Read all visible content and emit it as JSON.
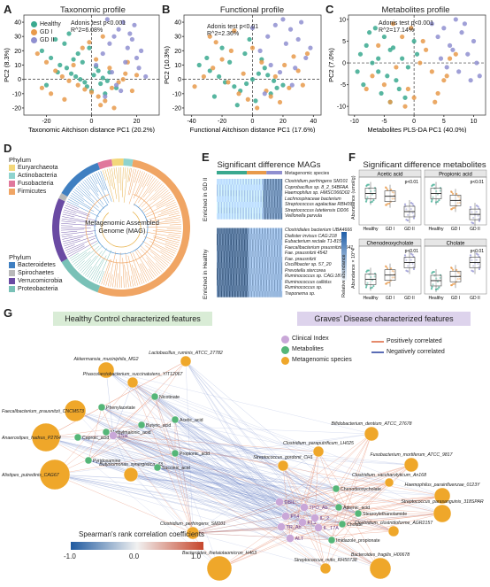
{
  "panel_letters": [
    "A",
    "B",
    "C",
    "D",
    "E",
    "F",
    "G"
  ],
  "colors": {
    "healthy": "#3aa98f",
    "gd1": "#e89a4b",
    "gd2": "#8f8fd0"
  },
  "panel_a": {
    "title": "Taxonomic profile",
    "adonis": "Adonis test p<0.001",
    "r2": "R^2=6.08%",
    "legend": [
      "Healthy",
      "GD I",
      "GD II"
    ]
  },
  "panel_b": {
    "title": "Functional profile",
    "adonis": "Adonis test p<0.01",
    "r2": "R^2=2.36%"
  },
  "panel_c": {
    "title": "Metabolites profile",
    "adonis": "Adonis test p<0.001",
    "r2": "R^2=17.14%"
  },
  "panel_d": {
    "center": "Metagenomic Assembled Genome (MAG)",
    "phylum_title": "Phylum",
    "phylum_top": [
      "Euryarchaeota",
      "Actinobacteria",
      "Fusobacteria",
      "Firmicutes"
    ],
    "phylum_bottom": [
      "Bacteroidetes",
      "Spirochaetes",
      "Verrucomicrobia",
      "Proteobacteria"
    ],
    "phylum_colors": {
      "Euryarchaeota": "#f3d77a",
      "Actinobacteria": "#8fd3ce",
      "Fusobacteria": "#e0789c",
      "Firmicutes": "#f0a564",
      "Bacteroidetes": "#3f7fc1",
      "Spirochaetes": "#b9b9b9",
      "Verrucomicrobia": "#6a4aa3",
      "Proteobacteria": "#79c1b7"
    }
  },
  "panel_e": {
    "title": "Significant difference MAGs",
    "species_header": "Metagenomic species",
    "gd_label": "Enriched in GD II",
    "healthy_label": "Enriched in Healthy",
    "scale_label": "Relative abundance",
    "gd_species": [
      "Clostridium perfringens SM101",
      "Coprobacillus sp. 8_2_54BFAA",
      "Haemophilus sp. HMSC066D02",
      "Lachnospiraceae bacterium",
      "Streptococcus agalactiae RBH09",
      "Streptococcus lutetiensis DD06",
      "Veillonella parvula"
    ],
    "healthy_species": [
      "Clostridiales bacterium UBA4666",
      "Dialister invisus CAG:218",
      "Eubacterium rectale T1-815",
      "Faecalibacterium prausnitzii 4541",
      "Fae. prausnitzii 4542",
      "Fae. prausnitzii",
      "Oscillibacter sp. 57_20",
      "Prevotella stercorea",
      "Ruminococcus sp. CAG:187",
      "Ruminococcus callidus",
      "Ruminococcus sp.",
      "Treponema sp."
    ]
  },
  "panel_f": {
    "title": "Significant difference metabolites",
    "boxes": [
      {
        "name": "Acetic acid",
        "p": "p<0.01",
        "healthy": 1.0,
        "gd1": 0.9,
        "gd2": 0.35
      },
      {
        "name": "Propionic acid",
        "p": "p<0.01",
        "healthy": 1.0,
        "gd1": 0.75,
        "gd2": 0.25
      },
      {
        "name": "Chenodeoxycholate",
        "p": "p<0.01",
        "healthy": 0.4,
        "gd1": 0.55,
        "gd2": 1.0
      },
      {
        "name": "Cholate",
        "p": "p<0.01",
        "healthy": 0.35,
        "gd1": 0.5,
        "gd2": 1.0
      }
    ],
    "ylabel_top": "Abundance (umol/g)",
    "ylabel_bottom": "Abundance × 10^4",
    "groups": [
      "Healthy",
      "GD I",
      "GD II"
    ]
  },
  "panel_g": {
    "header_left": "Healthy Control characterized features",
    "header_right": "Graves' Disease characterized features",
    "legend_nodes": [
      "Clinical Index",
      "Metabolites",
      "Metagenomic species"
    ],
    "legend_edges": [
      "Positively correlated",
      "Negatively correlated"
    ],
    "scale_title": "Spearman's rank correlation coefficients",
    "scale_ticks": [
      "-1.0",
      "0.0",
      "1.0"
    ],
    "left_species": [
      "Akkermansia_muciniphila_MG2",
      "Lactobacillus_ruminis_ATCC_27782",
      "Phascolarctobacterium_succinatutens_YIT12067",
      "Faecalibacterium_prausnitzii_CNCM573",
      "Anaerostipes_hadrus_P2764",
      "Alistipes_putredinis_CAG67",
      "Butyricimonas_synergistica_43"
    ],
    "left_metabolites": [
      "Phenylacetate",
      "Nicotinate",
      "Methylmalonic_acid",
      "Butyric_acid",
      "Acetic_acid",
      "Caproic_acid",
      "Pyridoxamine",
      "Propionic_acid",
      "Succinic_acid"
    ],
    "clinical": [
      "TSH",
      "FT4",
      "FT3",
      "TR_Ab",
      "TPO_Ab",
      "DBIL",
      "IL_2",
      "IL_17A",
      "ALT"
    ],
    "right_metabolites": [
      "Chenodeoxycholate",
      "Adrenic_acid",
      "Cholate",
      "Stearoylethanolamide",
      "Imidazole_propionate"
    ],
    "right_species": [
      "Bifidobacterium_dentium_ATCC_27678",
      "Clostridium_paraputrificum_LH025",
      "Fusobacterium_mortiferum_ATCC_9817",
      "Streptococcus_gordonii_CH1",
      "Clostridium_saccharolyticum_An168",
      "Haemophilus_parainfluenzae_0123Y",
      "Streptococcus_parasanguinis_318SPAR",
      "Clostridium_clostridioforme_AGR2157",
      "Clostridium_perfringens_SM101",
      "Bacteroides_thetaiotaomicron_H463",
      "Bacteroides_fragilis_H00678",
      "Streptococcus_mitis_RH50738"
    ]
  },
  "chart_data": [
    {
      "type": "scatter",
      "title": "Taxonomic profile",
      "xlabel": "Taxonomic Aitchison distance PC1 (20.2%)",
      "ylabel": "PC2 (8.3%)",
      "xlim": [
        -30,
        30
      ],
      "ylim": [
        -25,
        45
      ],
      "xticks": [
        -20,
        0,
        20
      ],
      "yticks": [
        -20,
        -10,
        0,
        10,
        20,
        30,
        40
      ],
      "series": [
        {
          "name": "Healthy",
          "x": [
            -22,
            -18,
            -14,
            -11,
            -9,
            -7,
            -5,
            -3,
            -2,
            1,
            3,
            5,
            -16,
            -12,
            -8,
            -4,
            0,
            4,
            8,
            -20,
            -6,
            2,
            6,
            -10,
            -1,
            7,
            -15,
            11
          ],
          "y": [
            20,
            15,
            10,
            8,
            4,
            2,
            0,
            -2,
            -5,
            3,
            6,
            1,
            28,
            25,
            14,
            12,
            -8,
            -3,
            5,
            -4,
            18,
            9,
            -10,
            32,
            22,
            -1,
            5,
            -6
          ]
        },
        {
          "name": "GD I",
          "x": [
            -24,
            -20,
            -16,
            -13,
            -10,
            -6,
            -3,
            0,
            3,
            6,
            9,
            12,
            15,
            -18,
            -8,
            -4,
            2,
            8,
            14,
            18,
            -12,
            4,
            10,
            20,
            -22,
            -1,
            5,
            16
          ],
          "y": [
            18,
            12,
            6,
            2,
            -1,
            -4,
            -7,
            -9,
            -12,
            -15,
            -6,
            -2,
            4,
            -10,
            10,
            22,
            14,
            8,
            0,
            -8,
            -14,
            -18,
            -20,
            3,
            -6,
            26,
            30,
            12
          ],
          "y_note": ""
        },
        {
          "name": "GD II",
          "x": [
            2,
            5,
            8,
            10,
            12,
            14,
            16,
            18,
            20,
            22,
            9,
            11,
            13,
            15,
            17,
            19,
            6,
            21,
            24,
            7
          ],
          "y": [
            10,
            18,
            25,
            30,
            35,
            40,
            22,
            28,
            15,
            20,
            5,
            -4,
            -8,
            12,
            32,
            38,
            -12,
            8,
            2,
            42
          ]
        }
      ]
    },
    {
      "type": "scatter",
      "title": "Functional profile",
      "xlabel": "Functional Aitchison distance PC1 (17.6%)",
      "ylabel": "PC2 (10.3%)",
      "xlim": [
        -45,
        45
      ],
      "ylim": [
        -25,
        45
      ],
      "xticks": [
        -40,
        -20,
        0,
        20,
        40
      ],
      "yticks": [
        -20,
        -10,
        0,
        10,
        20,
        30,
        40
      ],
      "series": [
        {
          "name": "Healthy",
          "x": [
            -35,
            -28,
            -22,
            -18,
            -12,
            -8,
            -4,
            0,
            4,
            8,
            12,
            16,
            -30,
            -25,
            -15,
            -5,
            2,
            10,
            20,
            -20,
            -10,
            6,
            -2,
            14
          ],
          "y": [
            10,
            6,
            2,
            -2,
            -5,
            -8,
            -3,
            0,
            4,
            8,
            -10,
            -6,
            15,
            -12,
            12,
            18,
            -15,
            3,
            -4,
            22,
            -18,
            14,
            28,
            -1
          ]
        },
        {
          "name": "GD I",
          "x": [
            -38,
            -32,
            -26,
            -20,
            -14,
            -9,
            -3,
            3,
            9,
            15,
            21,
            27,
            33,
            -24,
            -16,
            -6,
            6,
            18,
            30,
            -28,
            0,
            12,
            24,
            -12,
            36
          ],
          "y": [
            -5,
            2,
            8,
            14,
            20,
            -10,
            -14,
            -20,
            -8,
            2,
            10,
            16,
            -4,
            26,
            -2,
            4,
            12,
            -16,
            6,
            30,
            22,
            -12,
            -6,
            34,
            18
          ]
        },
        {
          "name": "GD II",
          "x": [
            5,
            10,
            15,
            20,
            25,
            30,
            35,
            12,
            18,
            22,
            28,
            32,
            8,
            38,
            0,
            26
          ],
          "y": [
            20,
            30,
            38,
            42,
            35,
            28,
            15,
            10,
            5,
            25,
            8,
            40,
            -10,
            22,
            36,
            -4
          ]
        }
      ]
    },
    {
      "type": "scatter",
      "title": "Metabolites profile",
      "xlabel": "Metabolites PLS-DA PC1 (40.0%)",
      "ylabel": "PC2 (7.0%)",
      "xlim": [
        -11,
        12
      ],
      "ylim": [
        -12,
        11
      ],
      "xticks": [
        -10,
        -5,
        0,
        5,
        10
      ],
      "yticks": [
        -10,
        -5,
        0,
        5,
        10
      ],
      "series": [
        {
          "name": "Healthy",
          "x": [
            -9,
            -8,
            -7,
            -6,
            -5,
            -4,
            -3,
            -2,
            -1,
            0,
            -8.5,
            -6.5,
            -4.5,
            -2.5,
            -7.5,
            -5.5,
            -3.5,
            -9.5,
            -1.5,
            0.5,
            -6,
            -4
          ],
          "y": [
            2,
            4,
            0,
            -2,
            6,
            3,
            -4,
            1,
            -1,
            5,
            -5,
            8,
            -3,
            -6,
            7,
            -7,
            3.5,
            -2,
            -8,
            2,
            1,
            -9
          ]
        },
        {
          "name": "GD I",
          "x": [
            -7,
            -5,
            -3,
            -1,
            1,
            3,
            5,
            -6,
            -2,
            2,
            4,
            6,
            -4,
            0,
            -8,
            7,
            -0.5,
            1.5,
            3.5,
            5.5,
            -3.5,
            -1.5
          ],
          "y": [
            -3,
            -5,
            -1,
            -6,
            0,
            -2,
            -4,
            4,
            6,
            3,
            -7,
            1,
            -9,
            -8,
            -6,
            2,
            8,
            5,
            -9,
            -3,
            9,
            -10
          ]
        },
        {
          "name": "GD II",
          "x": [
            4,
            5,
            6,
            7,
            8,
            9,
            10,
            5.5,
            6.5,
            7.5,
            8.5,
            9.5,
            4.5,
            10.5,
            3,
            11
          ],
          "y": [
            6,
            8,
            4,
            10,
            7,
            2,
            5,
            -1,
            3,
            -2,
            9,
            -4,
            1,
            0,
            9,
            -3
          ]
        }
      ]
    }
  ]
}
